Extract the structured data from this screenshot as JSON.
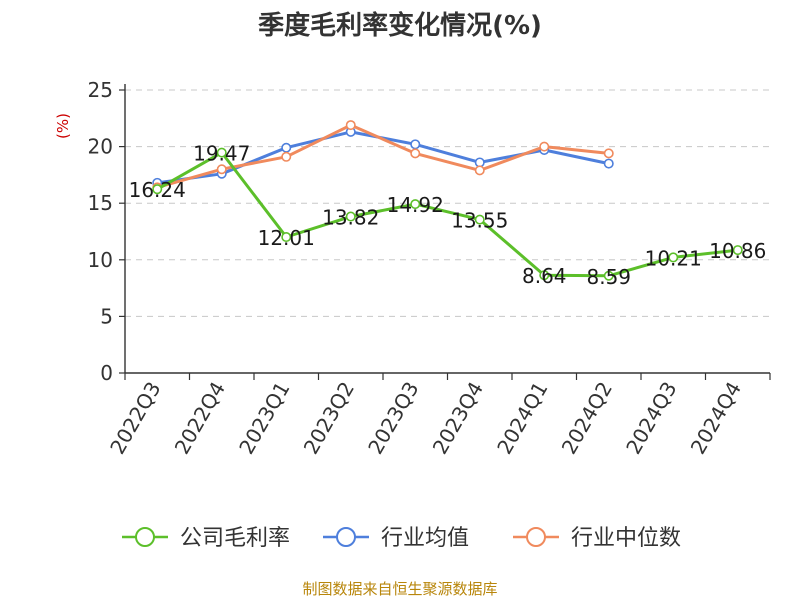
{
  "chart_data": {
    "type": "line",
    "title": "季度毛利率变化情况(%)",
    "ylabel": "(%)",
    "ylim": [
      0,
      25
    ],
    "yticks": [
      0,
      5,
      10,
      15,
      20,
      25
    ],
    "categories": [
      "2022Q3",
      "2022Q4",
      "2023Q1",
      "2023Q2",
      "2023Q3",
      "2023Q4",
      "2024Q1",
      "2024Q2",
      "2024Q3",
      "2024Q4"
    ],
    "grid": true,
    "legend_position": "bottom",
    "series": [
      {
        "name": "公司毛利率",
        "color": "#5cbf2a",
        "values": [
          16.24,
          19.47,
          12.01,
          13.82,
          14.92,
          13.55,
          8.64,
          8.59,
          10.21,
          10.86
        ],
        "labels": [
          "16.24",
          "19.47",
          "12.01",
          "13.82",
          "14.92",
          "13.55",
          "8.64",
          "8.59",
          "10.21",
          "10.86"
        ]
      },
      {
        "name": "行业均值",
        "color": "#4e7fdc",
        "values": [
          16.8,
          17.6,
          19.9,
          21.3,
          20.2,
          18.6,
          19.7,
          18.5,
          null,
          null
        ]
      },
      {
        "name": "行业中位数",
        "color": "#f08a5d",
        "values": [
          16.4,
          18.0,
          19.1,
          21.9,
          19.4,
          17.9,
          20.0,
          19.4,
          null,
          null
        ]
      }
    ]
  },
  "source": "制图数据来自恒生聚源数据库"
}
